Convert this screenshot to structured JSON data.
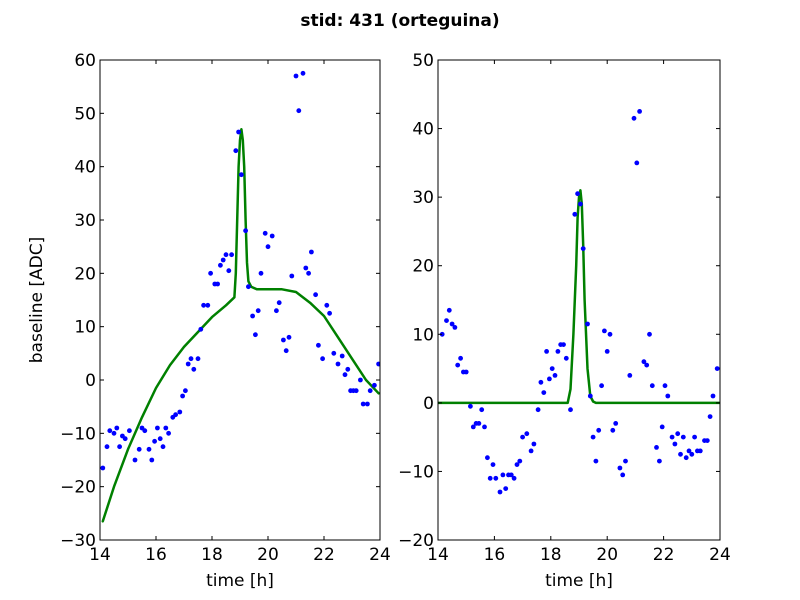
{
  "figure": {
    "title": "stid: 431 (orteguina)"
  },
  "colors": {
    "points": "#0000ff",
    "fit": "#008000",
    "axes": "#000000",
    "background": "#ffffff"
  },
  "chart_data": [
    {
      "type": "scatter",
      "xlabel": "time [h]",
      "ylabel": "baseline [ADC]",
      "xlim": [
        14,
        24
      ],
      "ylim": [
        -30,
        60
      ],
      "xticks": [
        "14",
        "16",
        "18",
        "20",
        "22",
        "24"
      ],
      "yticks": [
        "60",
        "50",
        "40",
        "30",
        "20",
        "10",
        "0",
        "−10",
        "−20",
        "−30"
      ],
      "xtick_values": [
        14,
        16,
        18,
        20,
        22,
        24
      ],
      "ytick_values": [
        60,
        50,
        40,
        30,
        20,
        10,
        0,
        -10,
        -20,
        -30
      ],
      "grid": false,
      "series": [
        {
          "kind": "points",
          "color": "#0000ff",
          "points": [
            [
              14.1,
              -16.5
            ],
            [
              14.25,
              -12.5
            ],
            [
              14.35,
              -9.5
            ],
            [
              14.5,
              -10
            ],
            [
              14.6,
              -9
            ],
            [
              14.7,
              -12.5
            ],
            [
              14.8,
              -10.5
            ],
            [
              14.9,
              -11
            ],
            [
              15.05,
              -9.5
            ],
            [
              15.25,
              -15
            ],
            [
              15.4,
              -13
            ],
            [
              15.5,
              -9
            ],
            [
              15.6,
              -9.5
            ],
            [
              15.75,
              -13
            ],
            [
              15.85,
              -15
            ],
            [
              15.95,
              -11.5
            ],
            [
              16.05,
              -9
            ],
            [
              16.15,
              -11
            ],
            [
              16.25,
              -12.5
            ],
            [
              16.35,
              -9
            ],
            [
              16.45,
              -10
            ],
            [
              16.6,
              -7
            ],
            [
              16.7,
              -6.5
            ],
            [
              16.85,
              -6
            ],
            [
              16.95,
              -3
            ],
            [
              17.05,
              -2
            ],
            [
              17.15,
              3
            ],
            [
              17.25,
              4
            ],
            [
              17.35,
              2
            ],
            [
              17.5,
              4
            ],
            [
              17.6,
              9.5
            ],
            [
              17.7,
              14
            ],
            [
              17.85,
              14
            ],
            [
              17.95,
              20
            ],
            [
              18.1,
              18
            ],
            [
              18.2,
              18
            ],
            [
              18.3,
              21.5
            ],
            [
              18.4,
              22.5
            ],
            [
              18.5,
              23.5
            ],
            [
              18.6,
              20.5
            ],
            [
              18.7,
              23.5
            ],
            [
              18.85,
              43
            ],
            [
              18.95,
              46.5
            ],
            [
              19.05,
              38.5
            ],
            [
              19.2,
              28
            ],
            [
              19.3,
              17.5
            ],
            [
              19.45,
              12
            ],
            [
              19.55,
              8.5
            ],
            [
              19.65,
              13
            ],
            [
              19.75,
              20
            ],
            [
              19.9,
              27.5
            ],
            [
              20.0,
              25
            ],
            [
              20.15,
              27
            ],
            [
              20.3,
              13
            ],
            [
              20.4,
              14.5
            ],
            [
              20.55,
              7.5
            ],
            [
              20.65,
              5.5
            ],
            [
              20.75,
              8
            ],
            [
              20.85,
              19.5
            ],
            [
              21.0,
              57
            ],
            [
              21.1,
              50.5
            ],
            [
              21.25,
              57.5
            ],
            [
              21.35,
              21
            ],
            [
              21.45,
              20
            ],
            [
              21.55,
              24
            ],
            [
              21.7,
              16
            ],
            [
              21.8,
              6.5
            ],
            [
              21.95,
              4
            ],
            [
              22.1,
              14
            ],
            [
              22.2,
              12.5
            ],
            [
              22.35,
              5
            ],
            [
              22.5,
              3
            ],
            [
              22.65,
              4.5
            ],
            [
              22.75,
              1
            ],
            [
              22.85,
              2
            ],
            [
              22.95,
              -2
            ],
            [
              23.05,
              -2
            ],
            [
              23.15,
              -2
            ],
            [
              23.3,
              0
            ],
            [
              23.4,
              -4.5
            ],
            [
              23.55,
              -4.5
            ],
            [
              23.65,
              -2
            ],
            [
              23.8,
              -1
            ],
            [
              23.95,
              3
            ]
          ]
        },
        {
          "kind": "fit",
          "color": "#008000",
          "points": [
            [
              14.1,
              -26.5
            ],
            [
              14.5,
              -20
            ],
            [
              15,
              -13
            ],
            [
              15.5,
              -7
            ],
            [
              16,
              -1.5
            ],
            [
              16.5,
              2.8
            ],
            [
              17,
              6.2
            ],
            [
              17.5,
              9
            ],
            [
              18,
              11.8
            ],
            [
              18.5,
              14
            ],
            [
              18.8,
              15.5
            ],
            [
              18.85,
              20
            ],
            [
              18.9,
              30
            ],
            [
              18.95,
              40
            ],
            [
              19.0,
              45
            ],
            [
              19.05,
              47
            ],
            [
              19.1,
              45
            ],
            [
              19.15,
              40
            ],
            [
              19.2,
              30
            ],
            [
              19.25,
              22
            ],
            [
              19.3,
              18.5
            ],
            [
              19.4,
              17.5
            ],
            [
              19.6,
              17
            ],
            [
              20,
              17
            ],
            [
              20.5,
              17
            ],
            [
              21,
              16.5
            ],
            [
              21.5,
              14.5
            ],
            [
              22,
              12
            ],
            [
              22.5,
              8
            ],
            [
              23,
              4
            ],
            [
              23.5,
              0
            ],
            [
              23.95,
              -2.5
            ]
          ]
        }
      ]
    },
    {
      "type": "scatter",
      "xlabel": "time [h]",
      "ylabel": "",
      "xlim": [
        14,
        24
      ],
      "ylim": [
        -20,
        50
      ],
      "xticks": [
        "14",
        "16",
        "18",
        "20",
        "22",
        "24"
      ],
      "yticks": [
        "50",
        "40",
        "30",
        "20",
        "10",
        "0",
        "−10",
        "−20"
      ],
      "xtick_values": [
        14,
        16,
        18,
        20,
        22,
        24
      ],
      "ytick_values": [
        50,
        40,
        30,
        20,
        10,
        0,
        -10,
        -20
      ],
      "grid": false,
      "series": [
        {
          "kind": "points",
          "color": "#0000ff",
          "points": [
            [
              14.15,
              10
            ],
            [
              14.3,
              12
            ],
            [
              14.4,
              13.5
            ],
            [
              14.5,
              11.5
            ],
            [
              14.6,
              11
            ],
            [
              14.7,
              5.5
            ],
            [
              14.8,
              6.5
            ],
            [
              14.9,
              4.5
            ],
            [
              15.0,
              4.5
            ],
            [
              15.15,
              -0.5
            ],
            [
              15.25,
              -3.5
            ],
            [
              15.35,
              -3
            ],
            [
              15.45,
              -3
            ],
            [
              15.55,
              -1
            ],
            [
              15.65,
              -3.5
            ],
            [
              15.75,
              -8
            ],
            [
              15.85,
              -11
            ],
            [
              15.95,
              -9
            ],
            [
              16.05,
              -11
            ],
            [
              16.2,
              -13
            ],
            [
              16.3,
              -10.5
            ],
            [
              16.4,
              -12.5
            ],
            [
              16.5,
              -10.5
            ],
            [
              16.6,
              -10.5
            ],
            [
              16.7,
              -11
            ],
            [
              16.8,
              -9
            ],
            [
              16.9,
              -8.5
            ],
            [
              17.0,
              -5
            ],
            [
              17.15,
              -4.5
            ],
            [
              17.3,
              -7
            ],
            [
              17.4,
              -6
            ],
            [
              17.55,
              -1
            ],
            [
              17.65,
              3
            ],
            [
              17.75,
              1.5
            ],
            [
              17.85,
              7.5
            ],
            [
              17.95,
              3.5
            ],
            [
              18.05,
              5
            ],
            [
              18.15,
              4
            ],
            [
              18.25,
              7.5
            ],
            [
              18.35,
              8.5
            ],
            [
              18.45,
              8.5
            ],
            [
              18.55,
              6.5
            ],
            [
              18.7,
              -1
            ],
            [
              18.85,
              27.5
            ],
            [
              18.95,
              30.5
            ],
            [
              19.05,
              29
            ],
            [
              19.15,
              22.5
            ],
            [
              19.3,
              11.5
            ],
            [
              19.4,
              1
            ],
            [
              19.5,
              -5
            ],
            [
              19.6,
              -8.5
            ],
            [
              19.7,
              -4
            ],
            [
              19.8,
              2.5
            ],
            [
              19.9,
              10.5
            ],
            [
              20.0,
              7.5
            ],
            [
              20.1,
              10
            ],
            [
              20.2,
              -4
            ],
            [
              20.3,
              -3
            ],
            [
              20.45,
              -9.5
            ],
            [
              20.55,
              -10.5
            ],
            [
              20.65,
              -8.5
            ],
            [
              20.8,
              4
            ],
            [
              20.95,
              41.5
            ],
            [
              21.05,
              35
            ],
            [
              21.15,
              42.5
            ],
            [
              21.3,
              6
            ],
            [
              21.4,
              5.5
            ],
            [
              21.5,
              10
            ],
            [
              21.6,
              2.5
            ],
            [
              21.75,
              -6.5
            ],
            [
              21.85,
              -8.5
            ],
            [
              21.95,
              -3.5
            ],
            [
              22.05,
              2.5
            ],
            [
              22.15,
              1
            ],
            [
              22.3,
              -5
            ],
            [
              22.4,
              -6
            ],
            [
              22.5,
              -4.5
            ],
            [
              22.6,
              -7.5
            ],
            [
              22.7,
              -5
            ],
            [
              22.8,
              -8
            ],
            [
              22.9,
              -7
            ],
            [
              23.0,
              -7.5
            ],
            [
              23.1,
              -5
            ],
            [
              23.2,
              -7
            ],
            [
              23.3,
              -7
            ],
            [
              23.45,
              -5.5
            ],
            [
              23.55,
              -5.5
            ],
            [
              23.65,
              -2
            ],
            [
              23.75,
              1
            ],
            [
              23.9,
              5
            ]
          ]
        },
        {
          "kind": "fit",
          "color": "#008000",
          "points": [
            [
              14,
              0
            ],
            [
              18.5,
              0
            ],
            [
              18.6,
              0
            ],
            [
              18.7,
              2
            ],
            [
              18.8,
              10
            ],
            [
              18.9,
              20
            ],
            [
              18.95,
              27
            ],
            [
              19.0,
              30
            ],
            [
              19.05,
              31
            ],
            [
              19.1,
              29
            ],
            [
              19.15,
              23
            ],
            [
              19.2,
              15
            ],
            [
              19.3,
              5
            ],
            [
              19.4,
              1
            ],
            [
              19.5,
              0.2
            ],
            [
              19.6,
              0
            ],
            [
              24,
              0
            ]
          ]
        }
      ]
    }
  ]
}
